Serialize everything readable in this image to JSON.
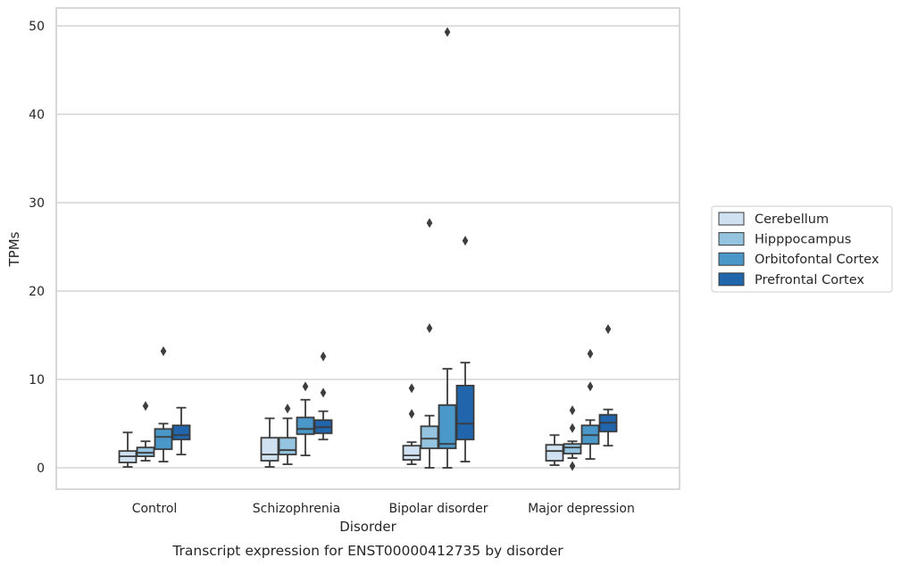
{
  "chart_data": {
    "type": "box",
    "caption": "Transcript expression for ENST00000412735 by disorder",
    "xlabel": "Disorder",
    "ylabel": "TPMs",
    "ylim": [
      -2.4,
      52
    ],
    "yticks": [
      0,
      10,
      20,
      30,
      40,
      50
    ],
    "grid": true,
    "legend_position": "right",
    "categories": [
      "Control",
      "Schizophrenia",
      "Bipolar disorder",
      "Major depression"
    ],
    "series": [
      {
        "name": "Cerebellum",
        "color": "#d0e1f2",
        "boxes": [
          {
            "whislo": 0.1,
            "q1": 0.6,
            "med": 1.3,
            "q3": 1.9,
            "whishi": 4.0,
            "fliers": []
          },
          {
            "whislo": 0.1,
            "q1": 0.8,
            "med": 1.5,
            "q3": 3.4,
            "whishi": 5.6,
            "fliers": []
          },
          {
            "whislo": 0.4,
            "q1": 0.9,
            "med": 1.4,
            "q3": 2.5,
            "whishi": 2.9,
            "fliers": [
              6.1,
              9.0
            ]
          },
          {
            "whislo": 0.3,
            "q1": 0.8,
            "med": 1.9,
            "q3": 2.6,
            "whishi": 3.7,
            "fliers": []
          }
        ]
      },
      {
        "name": "Hipppocampus",
        "color": "#94c4df",
        "boxes": [
          {
            "whislo": 0.8,
            "q1": 1.3,
            "med": 1.7,
            "q3": 2.3,
            "whishi": 3.0,
            "fliers": [
              7.0
            ]
          },
          {
            "whislo": 0.4,
            "q1": 1.5,
            "med": 2.0,
            "q3": 3.4,
            "whishi": 5.6,
            "fliers": [
              6.7
            ]
          },
          {
            "whislo": 0.0,
            "q1": 2.2,
            "med": 3.3,
            "q3": 4.7,
            "whishi": 5.9,
            "fliers": [
              15.8,
              27.7
            ]
          },
          {
            "whislo": 1.1,
            "q1": 1.6,
            "med": 2.3,
            "q3": 2.7,
            "whishi": 3.0,
            "fliers": [
              0.2,
              4.5,
              6.5
            ]
          }
        ]
      },
      {
        "name": "Orbitofontal Cortex",
        "color": "#4a98c9",
        "boxes": [
          {
            "whislo": 0.7,
            "q1": 2.1,
            "med": 3.5,
            "q3": 4.4,
            "whishi": 5.0,
            "fliers": [
              13.2
            ]
          },
          {
            "whislo": 1.4,
            "q1": 3.8,
            "med": 4.4,
            "q3": 5.7,
            "whishi": 7.7,
            "fliers": [
              9.2
            ]
          },
          {
            "whislo": 0.0,
            "q1": 2.2,
            "med": 2.7,
            "q3": 7.1,
            "whishi": 11.2,
            "fliers": [
              49.3
            ]
          },
          {
            "whislo": 1.0,
            "q1": 2.7,
            "med": 3.7,
            "q3": 4.8,
            "whishi": 5.4,
            "fliers": [
              9.2,
              12.9
            ]
          }
        ]
      },
      {
        "name": "Prefrontal Cortex",
        "color": "#2166ac",
        "boxes": [
          {
            "whislo": 1.5,
            "q1": 3.2,
            "med": 3.7,
            "q3": 4.8,
            "whishi": 6.8,
            "fliers": []
          },
          {
            "whislo": 3.2,
            "q1": 3.9,
            "med": 4.6,
            "q3": 5.4,
            "whishi": 6.4,
            "fliers": [
              8.5,
              12.6
            ]
          },
          {
            "whislo": 0.7,
            "q1": 3.2,
            "med": 5.0,
            "q3": 9.3,
            "whishi": 11.9,
            "fliers": [
              25.7
            ]
          },
          {
            "whislo": 2.5,
            "q1": 4.1,
            "med": 5.1,
            "q3": 6.0,
            "whishi": 6.6,
            "fliers": [
              15.7
            ]
          }
        ]
      }
    ]
  }
}
